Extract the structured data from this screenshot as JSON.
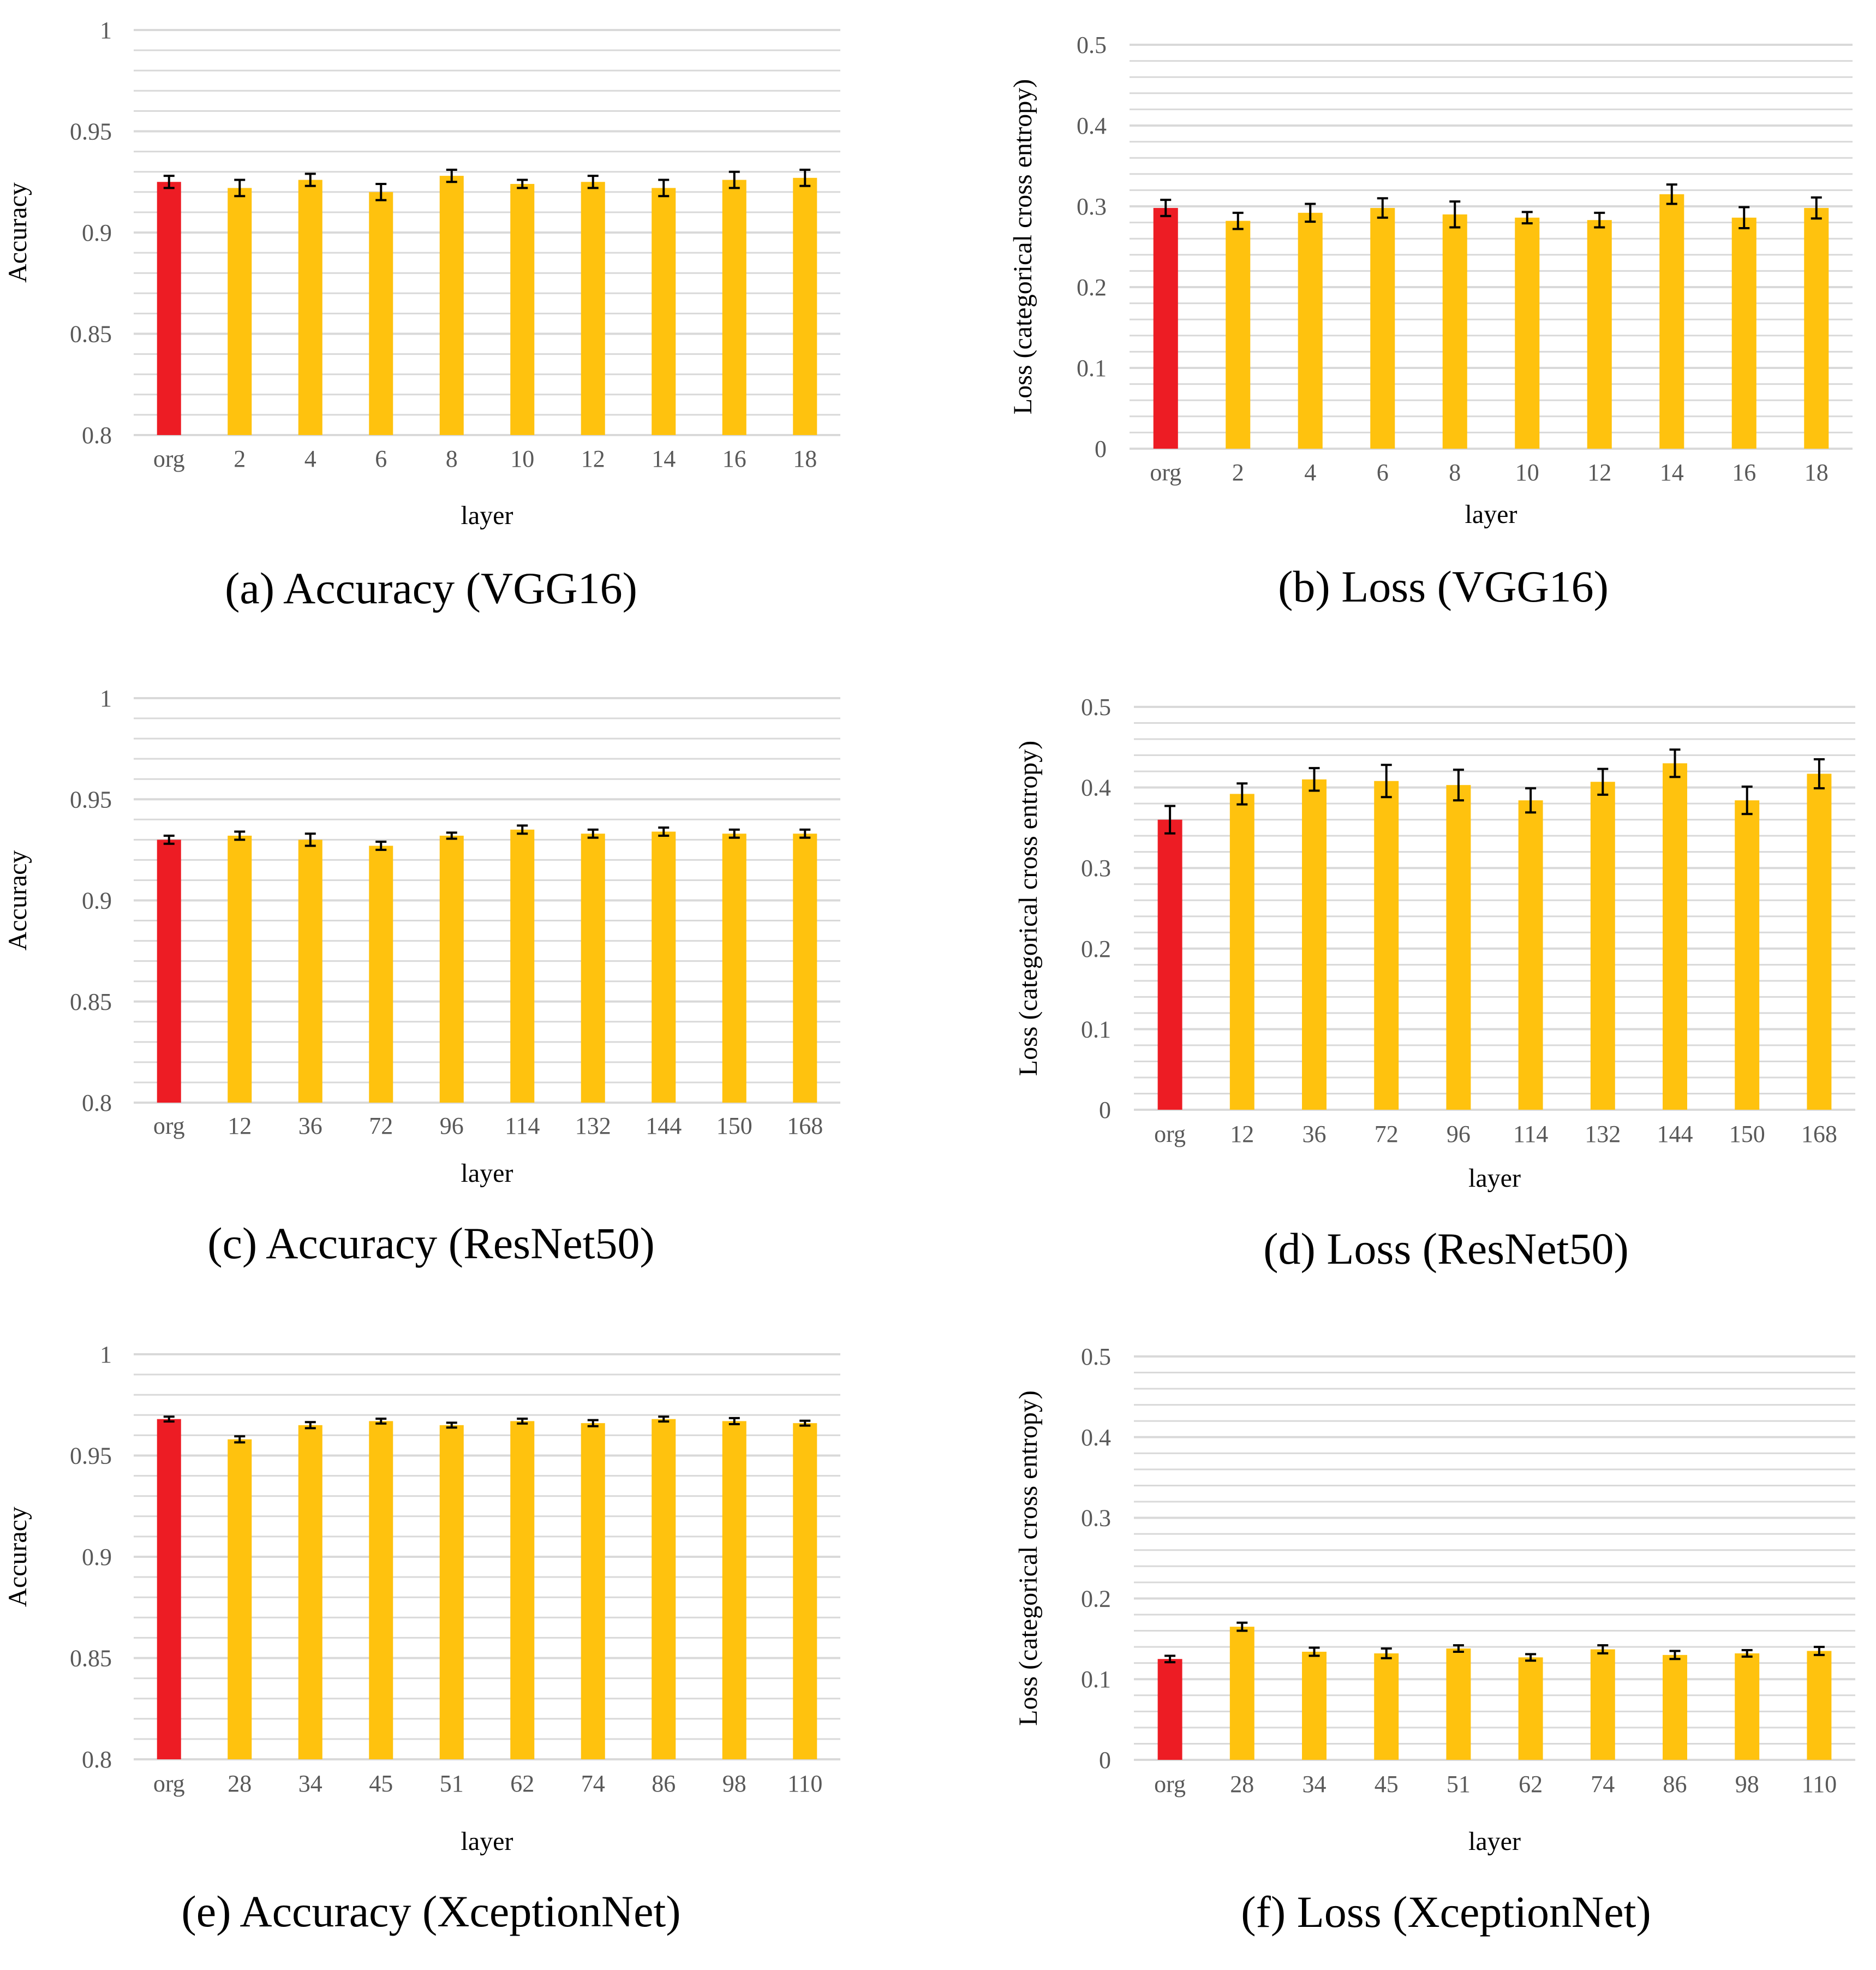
{
  "colors": {
    "baseline_bar": "#ED1C24",
    "layer_bar": "#FFC20E",
    "gridline": "#D9D9D9",
    "error_bar": "#000000"
  },
  "chart_data": [
    {
      "type": "bar",
      "caption": "(a) Accuracy (VGG16)",
      "xlabel": "layer",
      "ylabel": "Accuracy",
      "categories": [
        "org",
        "2",
        "4",
        "6",
        "8",
        "10",
        "12",
        "14",
        "16",
        "18"
      ],
      "values": [
        0.925,
        0.922,
        0.926,
        0.92,
        0.928,
        0.924,
        0.925,
        0.922,
        0.926,
        0.927
      ],
      "errors": [
        0.003,
        0.004,
        0.003,
        0.004,
        0.003,
        0.002,
        0.003,
        0.004,
        0.004,
        0.004
      ],
      "ylim": [
        0.8,
        1.0
      ],
      "yticks": [
        0.8,
        0.85,
        0.9,
        0.95,
        1
      ],
      "ytick_labels": [
        "0.8",
        "0.85",
        "0.9",
        "0.95",
        "1"
      ],
      "minor_grid": 0.01
    },
    {
      "type": "bar",
      "caption": "(b) Loss (VGG16)",
      "xlabel": "layer",
      "ylabel": "Loss (categorical cross entropy)",
      "categories": [
        "org",
        "2",
        "4",
        "6",
        "8",
        "10",
        "12",
        "14",
        "16",
        "18"
      ],
      "values": [
        0.298,
        0.282,
        0.292,
        0.298,
        0.29,
        0.286,
        0.283,
        0.315,
        0.286,
        0.298
      ],
      "errors": [
        0.01,
        0.01,
        0.011,
        0.012,
        0.016,
        0.007,
        0.009,
        0.012,
        0.013,
        0.013
      ],
      "ylim": [
        0,
        0.5
      ],
      "yticks": [
        0,
        0.1,
        0.2,
        0.3,
        0.4,
        0.5
      ],
      "ytick_labels": [
        "0",
        "0.1",
        "0.2",
        "0.3",
        "0.4",
        "0.5"
      ],
      "minor_grid": 0.02
    },
    {
      "type": "bar",
      "caption": "(c) Accuracy (ResNet50)",
      "xlabel": "layer",
      "ylabel": "Accuracy",
      "categories": [
        "org",
        "12",
        "36",
        "72",
        "96",
        "114",
        "132",
        "144",
        "150",
        "168"
      ],
      "values": [
        0.93,
        0.932,
        0.93,
        0.927,
        0.932,
        0.935,
        0.933,
        0.934,
        0.933,
        0.933
      ],
      "errors": [
        0.002,
        0.002,
        0.003,
        0.002,
        0.0015,
        0.002,
        0.002,
        0.002,
        0.002,
        0.002
      ],
      "ylim": [
        0.8,
        1.0
      ],
      "yticks": [
        0.8,
        0.85,
        0.9,
        0.95,
        1
      ],
      "ytick_labels": [
        "0.8",
        "0.85",
        "0.9",
        "0.95",
        "1"
      ],
      "minor_grid": 0.01
    },
    {
      "type": "bar",
      "caption": "(d) Loss (ResNet50)",
      "xlabel": "layer",
      "ylabel": "Loss (categorical cross entropy)",
      "categories": [
        "org",
        "12",
        "36",
        "72",
        "96",
        "114",
        "132",
        "144",
        "150",
        "168"
      ],
      "values": [
        0.36,
        0.392,
        0.41,
        0.408,
        0.403,
        0.384,
        0.407,
        0.43,
        0.384,
        0.417
      ],
      "errors": [
        0.017,
        0.013,
        0.014,
        0.02,
        0.019,
        0.015,
        0.016,
        0.017,
        0.017,
        0.018
      ],
      "ylim": [
        0,
        0.5
      ],
      "yticks": [
        0,
        0.1,
        0.2,
        0.3,
        0.4,
        0.5
      ],
      "ytick_labels": [
        "0",
        "0.1",
        "0.2",
        "0.3",
        "0.4",
        "0.5"
      ],
      "minor_grid": 0.02
    },
    {
      "type": "bar",
      "caption": "(e) Accuracy (XceptionNet)",
      "xlabel": "layer",
      "ylabel": "Accuracy",
      "categories": [
        "org",
        "28",
        "34",
        "45",
        "51",
        "62",
        "74",
        "86",
        "98",
        "110"
      ],
      "values": [
        0.968,
        0.958,
        0.965,
        0.967,
        0.965,
        0.967,
        0.966,
        0.968,
        0.967,
        0.966
      ],
      "errors": [
        0.0012,
        0.0015,
        0.0015,
        0.0012,
        0.0012,
        0.0012,
        0.0015,
        0.0012,
        0.0015,
        0.0012
      ],
      "ylim": [
        0.8,
        1.0
      ],
      "yticks": [
        0.8,
        0.85,
        0.9,
        0.95,
        1
      ],
      "ytick_labels": [
        "0.8",
        "0.85",
        "0.9",
        "0.95",
        "1"
      ],
      "minor_grid": 0.01
    },
    {
      "type": "bar",
      "caption": "(f) Loss (XceptionNet)",
      "xlabel": "layer",
      "ylabel": "Loss (categorical cross entropy)",
      "categories": [
        "org",
        "28",
        "34",
        "45",
        "51",
        "62",
        "74",
        "86",
        "98",
        "110"
      ],
      "values": [
        0.125,
        0.165,
        0.134,
        0.132,
        0.138,
        0.127,
        0.137,
        0.13,
        0.132,
        0.135
      ],
      "errors": [
        0.004,
        0.005,
        0.005,
        0.006,
        0.004,
        0.004,
        0.005,
        0.005,
        0.004,
        0.005
      ],
      "ylim": [
        0,
        0.5
      ],
      "yticks": [
        0,
        0.1,
        0.2,
        0.3,
        0.4,
        0.5
      ],
      "ytick_labels": [
        "0",
        "0.1",
        "0.2",
        "0.3",
        "0.4",
        "0.5"
      ],
      "minor_grid": 0.02
    }
  ]
}
